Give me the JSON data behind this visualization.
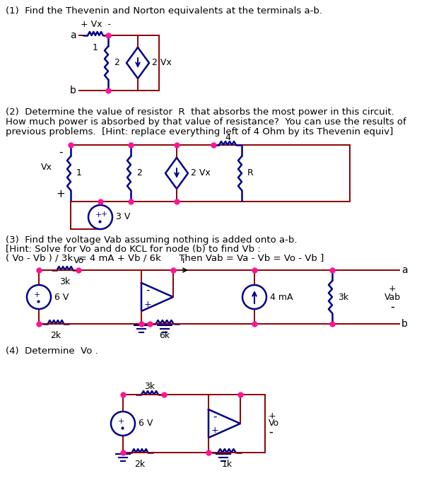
{
  "bg_color": "#ffffff",
  "wire_color": "#8B0000",
  "comp_color": "#00008B",
  "dot_color": "#FF1493",
  "text_color": "#000000",
  "figsize": [
    6.07,
    7.0
  ],
  "dpi": 100,
  "s1": "(1)  Find the Thevenin and Norton equivalents at the terminals a-b.",
  "s2a": "(2)  Determine the value of resistor  R  that absorbs the most power in this circuit.",
  "s2b": "How much power is absorbed by that value of resistance?  You can use the results of",
  "s2c": "previous problems.  [Hint: replace everything left of 4 Ohm by its Thevenin equiv]",
  "s3a": "(3)  Find the voltage Vab assuming nothing is added onto a-b.",
  "s3b": "[Hint: Solve for Vo and do KCL for node (b) to find Vb :",
  "s3c": "( Vo - Vb ) / 3k  = 4 mA + Vb / 6k      Then Vab = Va - Vb = Vo - Vb ]",
  "s4": "(4)  Determine  Vo ."
}
